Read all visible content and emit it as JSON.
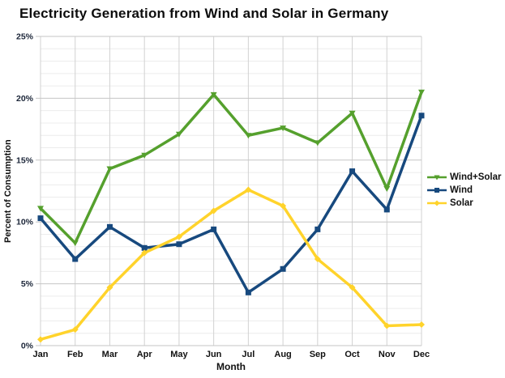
{
  "chart_data": {
    "type": "line",
    "title": "Electricity Generation from Wind and Solar in Germany",
    "xlabel": "Month",
    "ylabel": "Percent of Consumption",
    "x": [
      "Jan",
      "Feb",
      "Mar",
      "Apr",
      "May",
      "Jun",
      "Jul",
      "Aug",
      "Sep",
      "Oct",
      "Nov",
      "Dec"
    ],
    "ylim": [
      0,
      25
    ],
    "y_major_step": 5,
    "y_minor_step": 1,
    "y_tick_labels": [
      "0%",
      "5%",
      "10%",
      "15%",
      "20%",
      "25%"
    ],
    "grid": true,
    "legend_position": "right",
    "series": [
      {
        "name": "Wind+Solar",
        "color": "#55A02D",
        "marker": "triangle",
        "values": [
          11.1,
          8.3,
          14.3,
          15.4,
          17.1,
          20.3,
          17.0,
          17.6,
          16.4,
          18.8,
          12.7,
          20.5
        ]
      },
      {
        "name": "Wind",
        "color": "#17497E",
        "marker": "square",
        "values": [
          10.3,
          7.0,
          9.6,
          7.9,
          8.2,
          9.4,
          4.3,
          6.2,
          9.4,
          14.1,
          11.0,
          18.6
        ]
      },
      {
        "name": "Solar",
        "color": "#FFD32B",
        "marker": "diamond",
        "values": [
          0.5,
          1.3,
          4.7,
          7.5,
          8.8,
          10.9,
          12.6,
          11.3,
          7.0,
          4.7,
          1.6,
          1.7
        ]
      }
    ],
    "style": {
      "minor_grid_color": "#ECECEC",
      "major_grid_color": "#C6C6C6",
      "vertical_grid_color": "#D2D2D2",
      "y_tick_label_color": "#1B2538",
      "x_tick_label_color": "#111111",
      "line_width": 3.5
    }
  }
}
